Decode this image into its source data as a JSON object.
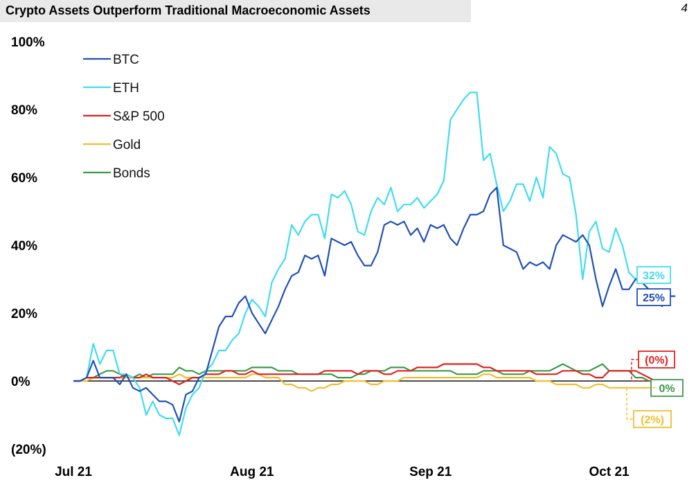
{
  "header": {
    "title": "Crypto Assets Outperform Traditional Macroeconomic Assets",
    "page_number": "4"
  },
  "chart_data": {
    "type": "line",
    "title": "Crypto Assets Outperform Traditional Macroeconomic Assets",
    "xlabel": "",
    "ylabel": "",
    "ylim": [
      -20,
      100
    ],
    "y_ticks": [
      {
        "value": 100,
        "label": "100%"
      },
      {
        "value": 80,
        "label": "80%"
      },
      {
        "value": 60,
        "label": "60%"
      },
      {
        "value": 40,
        "label": "40%"
      },
      {
        "value": 20,
        "label": "20%"
      },
      {
        "value": 0,
        "label": "0%"
      },
      {
        "value": -20,
        "label": "(20%)"
      }
    ],
    "x_ticks": [
      {
        "index": 0,
        "label": "Jul 21"
      },
      {
        "index": 27,
        "label": "Aug 21"
      },
      {
        "index": 54,
        "label": "Sep 21"
      },
      {
        "index": 81,
        "label": "Oct 21"
      }
    ],
    "legend_position": "top-left",
    "grid": false,
    "series": [
      {
        "name": "BTC",
        "color": "#1f4fb5",
        "end_label": "25%",
        "end_label_color": "#1f4fb5",
        "values": [
          0,
          0,
          1,
          6,
          1,
          1,
          1,
          -1,
          2,
          -2,
          -3,
          -2,
          -4,
          -6,
          -6,
          -7,
          -12,
          -4,
          -3,
          1,
          2,
          9,
          16,
          19,
          19,
          23,
          25,
          20,
          17,
          14,
          18,
          22,
          27,
          31,
          32,
          37,
          36,
          37,
          31,
          42,
          41,
          40,
          41,
          37,
          34,
          34,
          38,
          46,
          47,
          46,
          47,
          43,
          45,
          41,
          46,
          45,
          46,
          42,
          40,
          45,
          49,
          49,
          50,
          55,
          57,
          40,
          39,
          38,
          33,
          35,
          34,
          35,
          33,
          40,
          43,
          42,
          41,
          43,
          40,
          30,
          22,
          28,
          33,
          27,
          27,
          30,
          29,
          27,
          24,
          22,
          25,
          25
        ]
      },
      {
        "name": "ETH",
        "color": "#3fdcef",
        "end_label": "32%",
        "end_label_color": "#3fdcef",
        "values": [
          0,
          0,
          1,
          11,
          5,
          9,
          9,
          2,
          2,
          1,
          -2,
          -10,
          -6,
          -10,
          -11,
          -11,
          -16,
          -8,
          -4,
          -2,
          3,
          5,
          9,
          9,
          12,
          14,
          20,
          24,
          22,
          19,
          29,
          33,
          36,
          46,
          43,
          47,
          49,
          49,
          42,
          55,
          54,
          56,
          52,
          44,
          43,
          50,
          54,
          52,
          57,
          50,
          52,
          52,
          54,
          51,
          53,
          55,
          59,
          77,
          80,
          83,
          85,
          85,
          65,
          67,
          58,
          50,
          53,
          58,
          58,
          53,
          60,
          54,
          69,
          67,
          61,
          60,
          49,
          30,
          44,
          47,
          39,
          38,
          45,
          40,
          32,
          30,
          32,
          32
        ]
      },
      {
        "name": "S&P 500",
        "color": "#e02020",
        "end_label": "(0%)",
        "end_label_color": "#e02020",
        "values": [
          0,
          0,
          1,
          1,
          1,
          1,
          1,
          1,
          2,
          1,
          1,
          2,
          1,
          1,
          1,
          0,
          -1,
          0,
          1,
          1,
          2,
          2,
          2,
          3,
          3,
          2,
          2,
          3,
          2,
          2,
          2,
          2,
          2,
          2,
          2,
          2,
          2,
          2,
          3,
          3,
          3,
          3,
          3,
          2,
          3,
          3,
          3,
          2,
          2,
          3,
          3,
          3,
          4,
          4,
          4,
          4,
          5,
          5,
          5,
          5,
          5,
          5,
          4,
          4,
          3,
          3,
          3,
          3,
          3,
          3,
          2,
          2,
          2,
          2,
          3,
          3,
          3,
          2,
          2,
          1,
          1,
          3,
          3,
          3,
          3,
          3,
          2,
          1,
          0,
          0,
          0
        ]
      },
      {
        "name": "Gold",
        "color": "#f2be2c",
        "end_label": "(2%)",
        "end_label_color": "#f2be2c",
        "values": [
          0,
          0,
          0,
          1,
          1,
          1,
          1,
          1,
          1,
          1,
          1,
          1,
          1,
          1,
          1,
          1,
          2,
          1,
          1,
          1,
          1,
          1,
          1,
          1,
          1,
          1,
          1,
          2,
          2,
          1,
          1,
          1,
          -1,
          -1,
          -2,
          -2,
          -3,
          -2,
          -2,
          -1,
          -1,
          0,
          0,
          0,
          0,
          -1,
          -1,
          0,
          0,
          0,
          1,
          1,
          1,
          1,
          1,
          1,
          1,
          1,
          1,
          1,
          1,
          1,
          2,
          2,
          1,
          1,
          1,
          1,
          1,
          1,
          0,
          0,
          0,
          -1,
          -1,
          -1,
          -1,
          -2,
          -2,
          -1,
          -1,
          -2,
          -2,
          -2,
          -2,
          -2,
          -2,
          -2,
          -2
        ]
      },
      {
        "name": "Bonds",
        "color": "#3a9a4a",
        "end_label": "0%",
        "end_label_color": "#3a9a4a",
        "values": [
          0,
          0,
          1,
          1,
          2,
          3,
          3,
          2,
          1,
          1,
          2,
          1,
          2,
          2,
          2,
          2,
          4,
          3,
          3,
          2,
          3,
          3,
          3,
          3,
          3,
          3,
          3,
          4,
          4,
          4,
          4,
          3,
          3,
          3,
          2,
          2,
          2,
          2,
          2,
          2,
          1,
          1,
          1,
          2,
          2,
          3,
          3,
          3,
          4,
          4,
          4,
          3,
          3,
          3,
          3,
          3,
          3,
          3,
          2,
          2,
          2,
          2,
          3,
          3,
          3,
          2,
          2,
          2,
          2,
          3,
          3,
          3,
          3,
          4,
          5,
          4,
          3,
          3,
          3,
          4,
          5,
          3,
          3,
          3,
          3,
          1,
          1,
          0,
          0
        ]
      }
    ]
  }
}
